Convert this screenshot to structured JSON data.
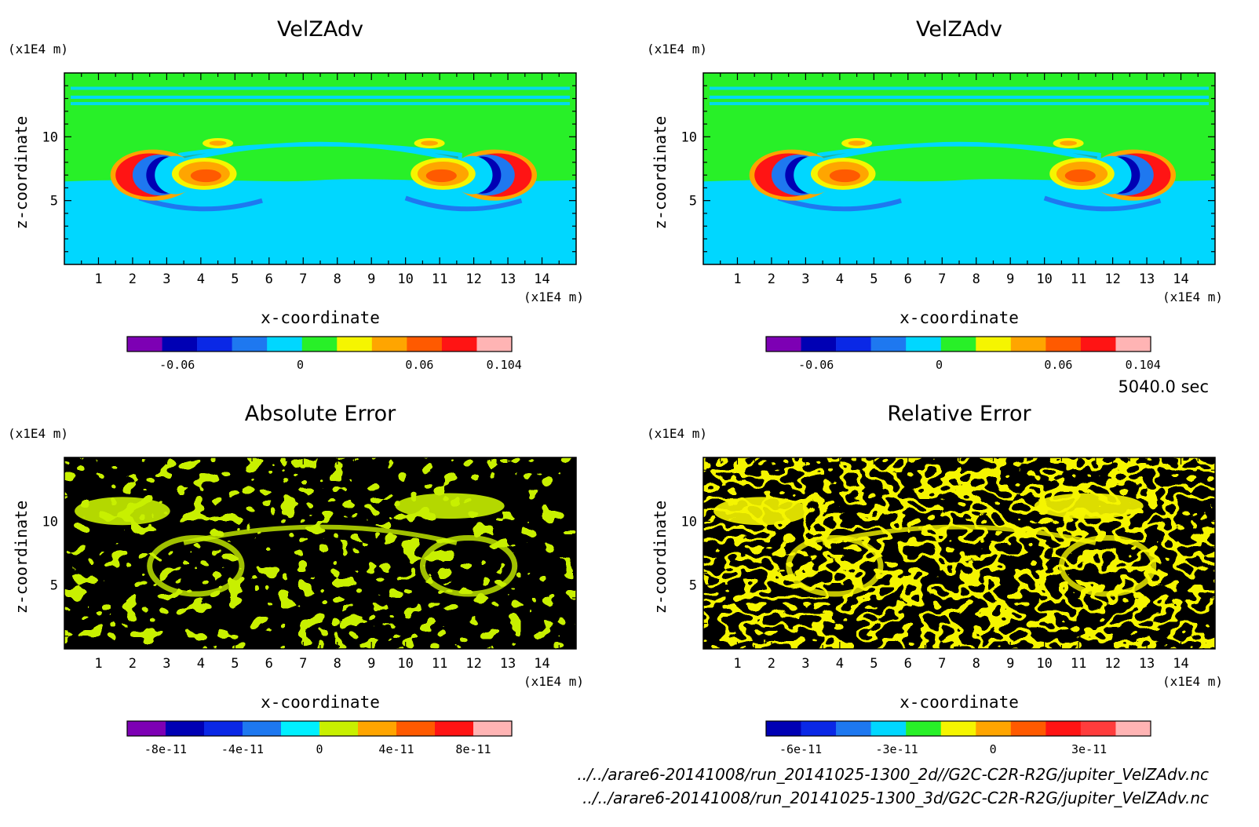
{
  "time_label": "5040.0 sec",
  "files": [
    "../../arare6-20141008/run_20141025-1300_2d//G2C-C2R-R2G/jupiter_VelZAdv.nc",
    "../../arare6-20141008/run_20141025-1300_3d/G2C-C2R-R2G/jupiter_VelZAdv.nc"
  ],
  "chart_data": [
    {
      "type": "heatmap",
      "title": "VelZAdv",
      "xlabel": "x-coordinate",
      "ylabel": "z-coordinate",
      "x_unit": "(x1E4 m)",
      "y_unit": "(x1E4 m)",
      "xlim": [
        0,
        15
      ],
      "ylim": [
        0,
        15
      ],
      "x_ticks": [
        1,
        2,
        3,
        4,
        5,
        6,
        7,
        8,
        9,
        10,
        11,
        12,
        13,
        14
      ],
      "y_ticks": [
        5,
        10
      ],
      "colorbar": {
        "colors": [
          "#7d00b4",
          "#0000b4",
          "#0a28e6",
          "#1e78f0",
          "#00d7ff",
          "#28f028",
          "#f5f500",
          "#ffa500",
          "#ff5a00",
          "#ff1414",
          "#ffb4b4"
        ],
        "tick_labels": [
          "-0.06",
          "0",
          "0.06",
          "0.104"
        ]
      },
      "pattern": "vortex"
    },
    {
      "type": "heatmap",
      "title": "VelZAdv",
      "xlabel": "x-coordinate",
      "ylabel": "z-coordinate",
      "x_unit": "(x1E4 m)",
      "y_unit": "(x1E4 m)",
      "xlim": [
        0,
        15
      ],
      "ylim": [
        0,
        15
      ],
      "x_ticks": [
        1,
        2,
        3,
        4,
        5,
        6,
        7,
        8,
        9,
        10,
        11,
        12,
        13,
        14
      ],
      "y_ticks": [
        5,
        10
      ],
      "colorbar": {
        "colors": [
          "#7d00b4",
          "#0000b4",
          "#0a28e6",
          "#1e78f0",
          "#00d7ff",
          "#28f028",
          "#f5f500",
          "#ffa500",
          "#ff5a00",
          "#ff1414",
          "#ffb4b4"
        ],
        "tick_labels": [
          "-0.06",
          "0",
          "0.06",
          "0.104"
        ]
      },
      "pattern": "vortex"
    },
    {
      "type": "heatmap",
      "title": "Absolute Error",
      "xlabel": "x-coordinate",
      "ylabel": "z-coordinate",
      "x_unit": "(x1E4 m)",
      "y_unit": "(x1E4 m)",
      "xlim": [
        0,
        15
      ],
      "ylim": [
        0,
        15
      ],
      "x_ticks": [
        1,
        2,
        3,
        4,
        5,
        6,
        7,
        8,
        9,
        10,
        11,
        12,
        13,
        14
      ],
      "y_ticks": [
        5,
        10
      ],
      "colorbar": {
        "colors": [
          "#7d00b4",
          "#0000b4",
          "#0a28e6",
          "#1e78f0",
          "#00f0ff",
          "#c8f000",
          "#ffa500",
          "#ff5a00",
          "#ff1414",
          "#ffb4b4"
        ],
        "tick_labels": [
          "-8e-11",
          "-4e-11",
          "0",
          "4e-11",
          "8e-11"
        ]
      },
      "pattern": "noise",
      "noise_colors": [
        "#00f0ff",
        "#c8f000"
      ]
    },
    {
      "type": "heatmap",
      "title": "Relative Error",
      "xlabel": "x-coordinate",
      "ylabel": "z-coordinate",
      "x_unit": "(x1E4 m)",
      "y_unit": "(x1E4 m)",
      "xlim": [
        0,
        15
      ],
      "ylim": [
        0,
        15
      ],
      "x_ticks": [
        1,
        2,
        3,
        4,
        5,
        6,
        7,
        8,
        9,
        10,
        11,
        12,
        13,
        14
      ],
      "y_ticks": [
        5,
        10
      ],
      "colorbar": {
        "colors": [
          "#0000b4",
          "#0a28e6",
          "#1e78f0",
          "#00d7ff",
          "#28f028",
          "#f5f500",
          "#ffa500",
          "#ff5a00",
          "#ff1414",
          "#ff3c3c",
          "#ffb4b4"
        ],
        "tick_labels": [
          "-6e-11",
          "-3e-11",
          "0",
          "3e-11"
        ]
      },
      "pattern": "noise",
      "noise_colors": [
        "#ffa500",
        "#f5f500"
      ]
    }
  ]
}
